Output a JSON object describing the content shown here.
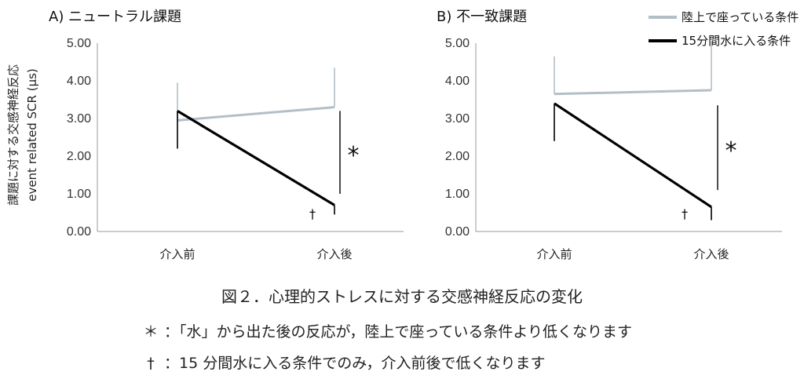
{
  "chart_data": [
    {
      "type": "line",
      "title": "A) ニュートラル課題",
      "ylabel_line1": "課題に対する交感神経反応",
      "ylabel_line2": "event related SCR (µs)",
      "categories": [
        "介入前",
        "介入後"
      ],
      "ylim": [
        0,
        5
      ],
      "yticks": [
        "0.00",
        "1.00",
        "2.00",
        "3.00",
        "4.00",
        "5.00"
      ],
      "series": [
        {
          "name": "陸上で座っている条件",
          "color": "#b3bfc6",
          "values": [
            2.95,
            3.3
          ],
          "err": [
            1.0,
            1.05
          ],
          "err_dir": "up"
        },
        {
          "name": "15分間水に入る条件",
          "color": "#000000",
          "values": [
            3.2,
            0.7
          ],
          "err": [
            1.0,
            0.25
          ],
          "err_dir": "down"
        }
      ],
      "annotations": [
        {
          "text": "*",
          "type": "bracket",
          "y_from": 1.0,
          "y_to": 3.2
        },
        {
          "text": "†",
          "type": "dagger"
        }
      ]
    },
    {
      "type": "line",
      "title": "B) 不一致課題",
      "categories": [
        "介入前",
        "介入後"
      ],
      "ylim": [
        0,
        5
      ],
      "yticks": [
        "0.00",
        "1.00",
        "2.00",
        "3.00",
        "4.00",
        "5.00"
      ],
      "series": [
        {
          "name": "陸上で座っている条件",
          "color": "#b3bfc6",
          "values": [
            3.65,
            3.75
          ],
          "err": [
            1.0,
            1.3
          ],
          "err_dir": "up"
        },
        {
          "name": "15分間水に入る条件",
          "color": "#000000",
          "values": [
            3.4,
            0.65
          ],
          "err": [
            1.0,
            0.35
          ],
          "err_dir": "down"
        }
      ],
      "annotations": [
        {
          "text": "*",
          "type": "bracket",
          "y_from": 1.1,
          "y_to": 3.35
        },
        {
          "text": "†",
          "type": "dagger"
        }
      ]
    }
  ],
  "legend": [
    {
      "label": "陸上で座っている条件",
      "color": "#b3bfc6"
    },
    {
      "label": "15分間水に入る条件",
      "color": "#000000"
    }
  ],
  "caption": "図２．心理的ストレスに対する交感神経反応の変化",
  "notes": [
    {
      "symbol": "＊",
      "text": "：「水」から出た後の反応が，陸上で座っている条件より低くなります"
    },
    {
      "symbol": "†",
      "text": "：15 分間水に入る条件でのみ，介入前後で低くなります"
    }
  ]
}
